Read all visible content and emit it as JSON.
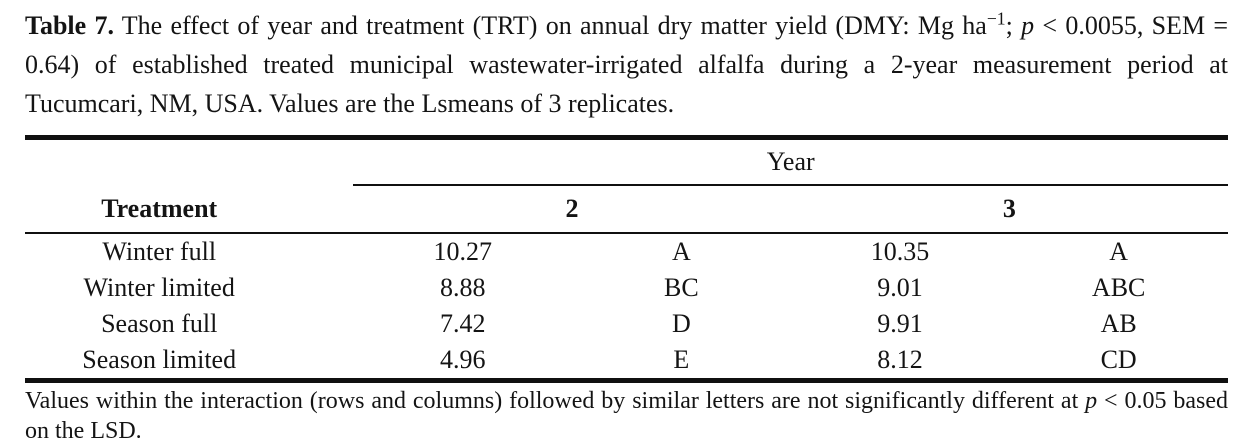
{
  "caption": {
    "label": "Table 7.",
    "seg1": " The effect of year and treatment (TRT) on annual dry matter yield (DMY: Mg ha",
    "superscript": "−1",
    "seg2": "; ",
    "p_symbol": "p",
    "seg3": " < 0.0055, SEM = 0.64) of established treated municipal wastewater-irrigated alfalfa during a 2-year measurement period at Tucumcari, NM, USA. Values are the Lsmeans of 3 replicates."
  },
  "table": {
    "year_header": "Year",
    "treatment_header": "Treatment",
    "year_columns": [
      "2",
      "3"
    ],
    "rows": [
      {
        "treatment": "Winter full",
        "y2_value": "10.27",
        "y2_letters": "A",
        "y3_value": "10.35",
        "y3_letters": "A"
      },
      {
        "treatment": "Winter limited",
        "y2_value": "8.88",
        "y2_letters": "BC",
        "y3_value": "9.01",
        "y3_letters": "ABC"
      },
      {
        "treatment": "Season full",
        "y2_value": "7.42",
        "y2_letters": "D",
        "y3_value": "9.91",
        "y3_letters": "AB"
      },
      {
        "treatment": "Season limited",
        "y2_value": "4.96",
        "y2_letters": "E",
        "y3_value": "8.12",
        "y3_letters": "CD"
      }
    ]
  },
  "footnote": {
    "seg1": "Values within the interaction (rows and columns) followed by similar letters are not significantly different at ",
    "p_symbol": "p",
    "seg2": " < 0.05 based on the LSD."
  },
  "colors": {
    "background": "#ffffff",
    "text": "#141414",
    "rule": "#101010"
  }
}
